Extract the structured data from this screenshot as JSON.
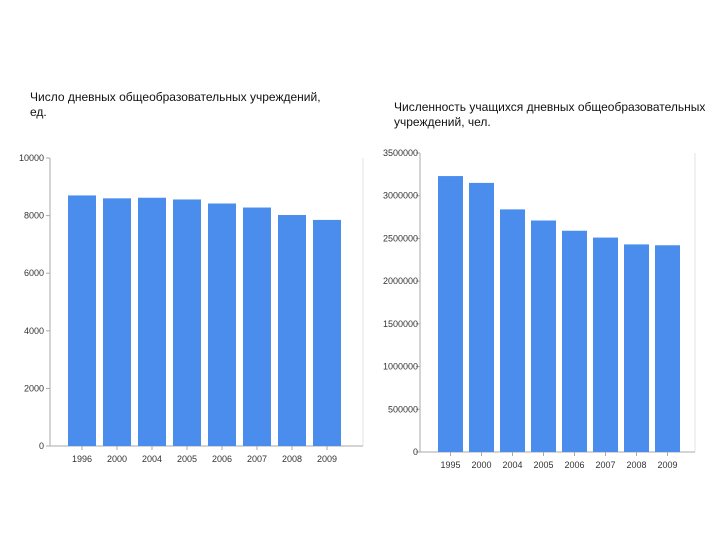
{
  "colors": {
    "bar": "#4a8ded",
    "axis": "#aaaaaa",
    "panel_border": "#e3e3e3"
  },
  "chart_data": [
    {
      "type": "bar",
      "title": "Число дневных общеобразовательных учреждений, ед.",
      "title_lines": [
        "Число дневных общеобразовательных учреждений,",
        "ед."
      ],
      "categories": [
        "1996",
        "2000",
        "2004",
        "2005",
        "2006",
        "2007",
        "2008",
        "2009"
      ],
      "values": [
        8700,
        8600,
        8620,
        8560,
        8420,
        8280,
        8020,
        7850
      ],
      "yticks": [
        "0",
        "2000",
        "4000",
        "6000",
        "8000",
        "10000"
      ],
      "ylim": [
        0,
        10000
      ],
      "grid": false
    },
    {
      "type": "bar",
      "title": "Численность учащихся дневных общеобразовательных учреждений, чел.",
      "title_lines": [
        "Численность учащихся дневных общеобразовательных",
        "учреждений, чел."
      ],
      "categories": [
        "1995",
        "2000",
        "2004",
        "2005",
        "2006",
        "2007",
        "2008",
        "2009"
      ],
      "values": [
        3230000,
        3150000,
        2840000,
        2710000,
        2590000,
        2510000,
        2430000,
        2420000
      ],
      "yticks": [
        "0",
        "500000",
        "1000000",
        "1500000",
        "2000000",
        "2500000",
        "3000000",
        "3500000"
      ],
      "ylim": [
        0,
        3500000
      ],
      "grid": false
    }
  ]
}
